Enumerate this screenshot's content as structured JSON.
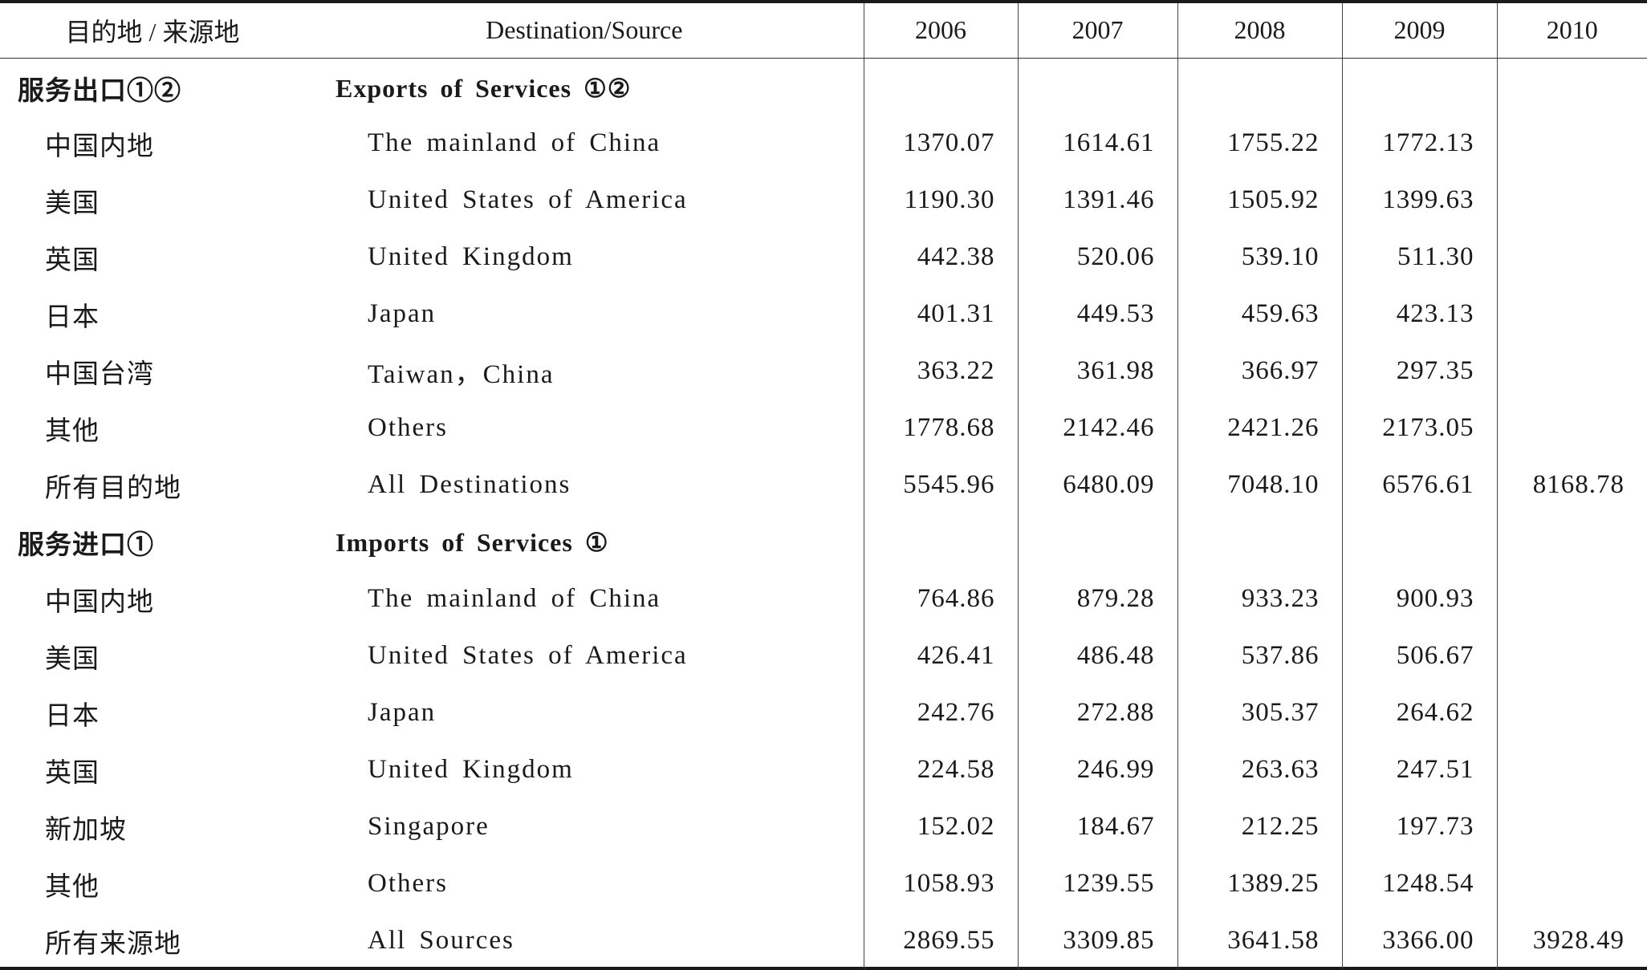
{
  "table": {
    "headers": {
      "cn": "目的地 / 来源地",
      "en": "Destination/Source",
      "years": [
        "2006",
        "2007",
        "2008",
        "2009",
        "2010"
      ]
    },
    "rows": [
      {
        "type": "section",
        "cn": "服务出口①②",
        "en": "Exports of Services ①②",
        "values": [
          "",
          "",
          "",
          "",
          ""
        ]
      },
      {
        "type": "item",
        "cn": "中国内地",
        "en": "The mainland of China",
        "values": [
          "1370.07",
          "1614.61",
          "1755.22",
          "1772.13",
          ""
        ]
      },
      {
        "type": "item",
        "cn": "美国",
        "en": "United States of America",
        "values": [
          "1190.30",
          "1391.46",
          "1505.92",
          "1399.63",
          ""
        ]
      },
      {
        "type": "item",
        "cn": "英国",
        "en": "United Kingdom",
        "values": [
          "442.38",
          "520.06",
          "539.10",
          "511.30",
          ""
        ]
      },
      {
        "type": "item",
        "cn": "日本",
        "en": "Japan",
        "values": [
          "401.31",
          "449.53",
          "459.63",
          "423.13",
          ""
        ]
      },
      {
        "type": "item",
        "cn": "中国台湾",
        "en": "Taiwan，China",
        "values": [
          "363.22",
          "361.98",
          "366.97",
          "297.35",
          ""
        ]
      },
      {
        "type": "item",
        "cn": "其他",
        "en": "Others",
        "values": [
          "1778.68",
          "2142.46",
          "2421.26",
          "2173.05",
          ""
        ]
      },
      {
        "type": "item",
        "cn": "所有目的地",
        "en": "All Destinations",
        "values": [
          "5545.96",
          "6480.09",
          "7048.10",
          "6576.61",
          "8168.78"
        ]
      },
      {
        "type": "section",
        "cn": "服务进口①",
        "en": "Imports of Services ①",
        "values": [
          "",
          "",
          "",
          "",
          ""
        ]
      },
      {
        "type": "item",
        "cn": "中国内地",
        "en": "The mainland of China",
        "values": [
          "764.86",
          "879.28",
          "933.23",
          "900.93",
          ""
        ]
      },
      {
        "type": "item",
        "cn": "美国",
        "en": "United States of America",
        "values": [
          "426.41",
          "486.48",
          "537.86",
          "506.67",
          ""
        ]
      },
      {
        "type": "item",
        "cn": "日本",
        "en": "Japan",
        "values": [
          "242.76",
          "272.88",
          "305.37",
          "264.62",
          ""
        ]
      },
      {
        "type": "item",
        "cn": "英国",
        "en": "United Kingdom",
        "values": [
          "224.58",
          "246.99",
          "263.63",
          "247.51",
          ""
        ]
      },
      {
        "type": "item",
        "cn": "新加坡",
        "en": "Singapore",
        "values": [
          "152.02",
          "184.67",
          "212.25",
          "197.73",
          ""
        ]
      },
      {
        "type": "item",
        "cn": "其他",
        "en": "Others",
        "values": [
          "1058.93",
          "1239.55",
          "1389.25",
          "1248.54",
          ""
        ]
      },
      {
        "type": "item",
        "cn": "所有来源地",
        "en": "All Sources",
        "values": [
          "2869.55",
          "3309.85",
          "3641.58",
          "3366.00",
          "3928.49"
        ]
      }
    ]
  }
}
